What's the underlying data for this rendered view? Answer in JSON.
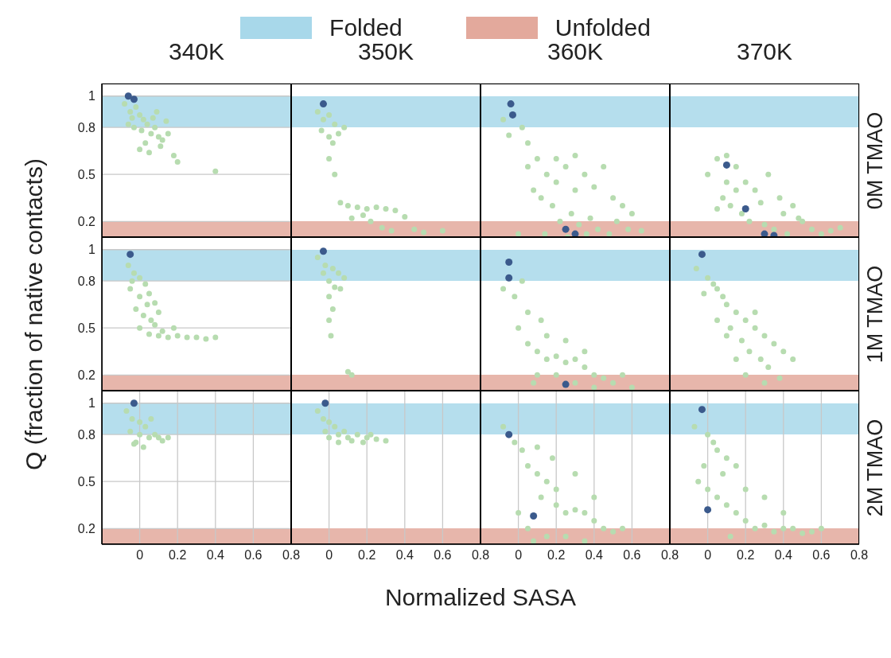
{
  "chart_data": [
    {
      "type": "scatter",
      "title": "340K",
      "legend": "top",
      "marker": "circle",
      "grid": true,
      "tick_labels": "y",
      "xlim": [
        -0.2,
        0.8
      ],
      "ylim": [
        0.1,
        1.08
      ],
      "xticks": [
        0,
        0.2,
        0.4,
        0.6,
        0.8
      ],
      "yticks": [
        0.2,
        0.5,
        0.8,
        1
      ],
      "bands": [
        {
          "axis": "y",
          "from": 0.8,
          "to": 1,
          "label": "Folded",
          "color": "#a8d8ea"
        },
        {
          "axis": "y",
          "from": 0.1,
          "to": 0.2,
          "label": "Unfolded",
          "color": "#e3a99c"
        }
      ],
      "series": [
        {
          "color": "#b7dcb0",
          "x": [
            -0.08,
            -0.05,
            -0.02,
            0,
            0.02,
            -0.06,
            -0.03,
            0.01,
            0.04,
            0.06,
            0.08,
            0.1,
            0.12,
            0.03,
            0.0,
            0.05,
            0.15,
            0.18,
            0.2,
            0.09,
            0.4,
            -0.04,
            0.07,
            0.11,
            0.14
          ],
          "values": [
            0.95,
            0.9,
            0.93,
            0.88,
            0.85,
            0.82,
            0.8,
            0.78,
            0.82,
            0.76,
            0.8,
            0.74,
            0.72,
            0.7,
            0.66,
            0.64,
            0.76,
            0.62,
            0.58,
            0.9,
            0.52,
            0.86,
            0.86,
            0.68,
            0.84
          ]
        },
        {
          "color": "#3b5a8c",
          "x": [
            -0.06,
            -0.03
          ],
          "values": [
            1.0,
            0.98
          ]
        }
      ]
    },
    {
      "type": "scatter",
      "title": "350K",
      "marker": "circle",
      "grid": true,
      "tick_labels": false,
      "xlim": [
        -0.2,
        0.8
      ],
      "ylim": [
        0.1,
        1.08
      ],
      "xticks": [
        0,
        0.2,
        0.4,
        0.6,
        0.8
      ],
      "yticks": [
        0.2,
        0.5,
        0.8,
        1
      ],
      "bands": [
        {
          "axis": "y",
          "from": 0.8,
          "to": 1,
          "color": "#a8d8ea"
        },
        {
          "axis": "y",
          "from": 0.1,
          "to": 0.2,
          "color": "#e3a99c"
        }
      ],
      "series": [
        {
          "color": "#b7dcb0",
          "x": [
            -0.06,
            -0.03,
            0,
            0.03,
            -0.04,
            0,
            0.02,
            0.05,
            0.08,
            0.0,
            0.03,
            0.06,
            0.1,
            0.15,
            0.2,
            0.25,
            0.3,
            0.35,
            0.12,
            0.18,
            0.22,
            0.28,
            0.33,
            0.45,
            0.5,
            0.6,
            0.4
          ],
          "values": [
            0.9,
            0.85,
            0.88,
            0.82,
            0.78,
            0.74,
            0.7,
            0.76,
            0.8,
            0.6,
            0.5,
            0.32,
            0.3,
            0.29,
            0.28,
            0.29,
            0.28,
            0.27,
            0.22,
            0.24,
            0.2,
            0.16,
            0.14,
            0.15,
            0.13,
            0.14,
            0.23
          ]
        },
        {
          "color": "#3b5a8c",
          "x": [
            -0.03
          ],
          "values": [
            0.95
          ]
        }
      ]
    },
    {
      "type": "scatter",
      "title": "360K",
      "marker": "circle",
      "grid": true,
      "tick_labels": false,
      "xlim": [
        -0.2,
        0.8
      ],
      "ylim": [
        0.1,
        1.08
      ],
      "xticks": [
        0,
        0.2,
        0.4,
        0.6,
        0.8
      ],
      "yticks": [
        0.2,
        0.5,
        0.8,
        1
      ],
      "bands": [
        {
          "axis": "y",
          "from": 0.8,
          "to": 1,
          "color": "#a8d8ea"
        },
        {
          "axis": "y",
          "from": 0.1,
          "to": 0.2,
          "color": "#e3a99c"
        }
      ],
      "series": [
        {
          "color": "#b7dcb0",
          "x": [
            -0.08,
            0.02,
            -0.05,
            0.05,
            0.05,
            0.1,
            0.15,
            0.2,
            0.25,
            0.3,
            0.35,
            0.4,
            0.45,
            0.5,
            0.55,
            0.6,
            0.12,
            0.18,
            0.22,
            0.28,
            0.32,
            0.38,
            0.42,
            0.48,
            0.08,
            0.14,
            0.26,
            0.36,
            0.52,
            0.58,
            0.65,
            0.0,
            0.2,
            0.3
          ],
          "values": [
            0.85,
            0.8,
            0.75,
            0.7,
            0.55,
            0.6,
            0.5,
            0.45,
            0.55,
            0.4,
            0.5,
            0.42,
            0.55,
            0.35,
            0.3,
            0.25,
            0.35,
            0.3,
            0.2,
            0.25,
            0.18,
            0.22,
            0.15,
            0.12,
            0.4,
            0.12,
            0.1,
            0.12,
            0.2,
            0.15,
            0.14,
            0.12,
            0.6,
            0.62
          ]
        },
        {
          "color": "#3b5a8c",
          "x": [
            -0.04,
            -0.03,
            0.25,
            0.3
          ],
          "values": [
            0.95,
            0.88,
            0.15,
            0.12
          ]
        }
      ]
    },
    {
      "type": "scatter",
      "title": "370K",
      "y2label": "0M TMAO",
      "marker": "circle",
      "grid": true,
      "tick_labels": false,
      "xlim": [
        -0.2,
        0.8
      ],
      "ylim": [
        0.1,
        1.08
      ],
      "xticks": [
        0,
        0.2,
        0.4,
        0.6,
        0.8
      ],
      "yticks": [
        0.2,
        0.5,
        0.8,
        1
      ],
      "bands": [
        {
          "axis": "y",
          "from": 0.8,
          "to": 1,
          "color": "#a8d8ea"
        },
        {
          "axis": "y",
          "from": 0.1,
          "to": 0.2,
          "color": "#e3a99c"
        }
      ],
      "series": [
        {
          "color": "#b7dcb0",
          "x": [
            0.05,
            0.1,
            0.15,
            0.0,
            0.2,
            0.25,
            0.08,
            0.12,
            0.18,
            0.22,
            0.3,
            0.35,
            0.4,
            0.45,
            0.5,
            0.55,
            0.6,
            0.65,
            0.7,
            0.1,
            0.15,
            0.28,
            0.38,
            0.48,
            0.05,
            0.32,
            0.42
          ],
          "values": [
            0.6,
            0.62,
            0.55,
            0.5,
            0.45,
            0.4,
            0.35,
            0.3,
            0.25,
            0.2,
            0.18,
            0.15,
            0.25,
            0.3,
            0.2,
            0.15,
            0.12,
            0.14,
            0.16,
            0.45,
            0.4,
            0.32,
            0.35,
            0.22,
            0.28,
            0.5,
            0.12
          ]
        },
        {
          "color": "#3b5a8c",
          "x": [
            0.1,
            0.2,
            0.3,
            0.35
          ],
          "values": [
            0.56,
            0.28,
            0.12,
            0.11
          ]
        }
      ]
    },
    {
      "type": "scatter",
      "ylabel": "Q (fraction of native contacts)",
      "marker": "circle",
      "grid": true,
      "tick_labels": "y",
      "xlim": [
        -0.2,
        0.8
      ],
      "ylim": [
        0.1,
        1.08
      ],
      "xticks": [
        0,
        0.2,
        0.4,
        0.6,
        0.8
      ],
      "yticks": [
        0.2,
        0.5,
        0.8,
        1
      ],
      "bands": [
        {
          "axis": "y",
          "from": 0.8,
          "to": 1,
          "color": "#a8d8ea"
        },
        {
          "axis": "y",
          "from": 0.1,
          "to": 0.2,
          "color": "#e3a99c"
        }
      ],
      "series": [
        {
          "color": "#b7dcb0",
          "x": [
            -0.06,
            -0.03,
            0,
            0.03,
            -0.05,
            0,
            0.05,
            0.08,
            -0.02,
            0.02,
            0.06,
            0.1,
            0.0,
            0.05,
            0.1,
            0.15,
            0.2,
            0.25,
            0.3,
            0.35,
            0.4,
            0.12,
            0.18,
            0.04,
            -0.04,
            0.08
          ],
          "values": [
            0.9,
            0.85,
            0.82,
            0.78,
            0.75,
            0.7,
            0.72,
            0.66,
            0.62,
            0.58,
            0.55,
            0.6,
            0.5,
            0.46,
            0.45,
            0.44,
            0.45,
            0.44,
            0.44,
            0.43,
            0.44,
            0.48,
            0.5,
            0.65,
            0.8,
            0.52
          ]
        },
        {
          "color": "#3b5a8c",
          "x": [
            -0.05
          ],
          "values": [
            0.97
          ]
        }
      ]
    },
    {
      "type": "scatter",
      "marker": "circle",
      "grid": true,
      "tick_labels": false,
      "xlim": [
        -0.2,
        0.8
      ],
      "ylim": [
        0.1,
        1.08
      ],
      "xticks": [
        0,
        0.2,
        0.4,
        0.6,
        0.8
      ],
      "yticks": [
        0.2,
        0.5,
        0.8,
        1
      ],
      "bands": [
        {
          "axis": "y",
          "from": 0.8,
          "to": 1,
          "color": "#a8d8ea"
        },
        {
          "axis": "y",
          "from": 0.1,
          "to": 0.2,
          "color": "#e3a99c"
        }
      ],
      "series": [
        {
          "color": "#b7dcb0",
          "x": [
            -0.06,
            -0.02,
            0.02,
            0.05,
            0.0,
            0.03,
            0.08,
            0.0,
            0.02,
            0.0,
            0.01,
            0.1,
            0.12,
            0.06,
            -0.03
          ],
          "values": [
            0.95,
            0.9,
            0.88,
            0.85,
            0.8,
            0.76,
            0.82,
            0.7,
            0.62,
            0.55,
            0.45,
            0.22,
            0.2,
            0.75,
            0.85
          ]
        },
        {
          "color": "#3b5a8c",
          "x": [
            -0.03
          ],
          "values": [
            0.99
          ]
        }
      ]
    },
    {
      "type": "scatter",
      "marker": "circle",
      "grid": true,
      "tick_labels": false,
      "xlim": [
        -0.2,
        0.8
      ],
      "ylim": [
        0.1,
        1.08
      ],
      "xticks": [
        0,
        0.2,
        0.4,
        0.6,
        0.8
      ],
      "yticks": [
        0.2,
        0.5,
        0.8,
        1
      ],
      "bands": [
        {
          "axis": "y",
          "from": 0.8,
          "to": 1,
          "color": "#a8d8ea"
        },
        {
          "axis": "y",
          "from": 0.1,
          "to": 0.2,
          "color": "#e3a99c"
        }
      ],
      "series": [
        {
          "color": "#b7dcb0",
          "x": [
            -0.08,
            -0.02,
            0.02,
            0.05,
            0.0,
            0.05,
            0.1,
            0.15,
            0.2,
            0.25,
            0.3,
            0.35,
            0.4,
            0.45,
            0.5,
            0.1,
            0.2,
            0.3,
            0.4,
            0.15,
            0.25,
            0.35,
            0.55,
            0.08,
            0.6,
            0.12
          ],
          "values": [
            0.75,
            0.7,
            0.8,
            0.6,
            0.5,
            0.4,
            0.35,
            0.3,
            0.32,
            0.28,
            0.3,
            0.25,
            0.2,
            0.18,
            0.15,
            0.2,
            0.2,
            0.15,
            0.12,
            0.45,
            0.42,
            0.35,
            0.2,
            0.15,
            0.12,
            0.55
          ]
        },
        {
          "color": "#3b5a8c",
          "x": [
            -0.05,
            -0.05,
            0.25
          ],
          "values": [
            0.92,
            0.82,
            0.14
          ]
        }
      ]
    },
    {
      "type": "scatter",
      "y2label": "1M TMAO",
      "marker": "circle",
      "grid": true,
      "tick_labels": false,
      "xlim": [
        -0.2,
        0.8
      ],
      "ylim": [
        0.1,
        1.08
      ],
      "xticks": [
        0,
        0.2,
        0.4,
        0.6,
        0.8
      ],
      "yticks": [
        0.2,
        0.5,
        0.8,
        1
      ],
      "bands": [
        {
          "axis": "y",
          "from": 0.8,
          "to": 1,
          "color": "#a8d8ea"
        },
        {
          "axis": "y",
          "from": 0.1,
          "to": 0.2,
          "color": "#e3a99c"
        }
      ],
      "series": [
        {
          "color": "#b7dcb0",
          "x": [
            -0.06,
            0.0,
            0.03,
            0.05,
            0.08,
            0.1,
            0.15,
            0.2,
            0.25,
            0.3,
            0.35,
            0.4,
            0.45,
            0.12,
            0.18,
            0.22,
            0.28,
            0.32,
            0.05,
            0.1,
            0.2,
            0.3,
            0.15,
            0.25,
            -0.02,
            0.38
          ],
          "values": [
            0.88,
            0.82,
            0.78,
            0.75,
            0.7,
            0.65,
            0.6,
            0.55,
            0.5,
            0.45,
            0.4,
            0.35,
            0.3,
            0.5,
            0.42,
            0.35,
            0.3,
            0.25,
            0.55,
            0.45,
            0.2,
            0.15,
            0.3,
            0.6,
            0.72,
            0.18
          ]
        },
        {
          "color": "#3b5a8c",
          "x": [
            -0.03
          ],
          "values": [
            0.97
          ]
        }
      ]
    },
    {
      "type": "scatter",
      "marker": "circle",
      "grid": true,
      "xlim": [
        -0.2,
        0.8
      ],
      "ylim": [
        0.1,
        1.08
      ],
      "xticks": [
        0,
        0.2,
        0.4,
        0.6,
        0.8
      ],
      "yticks": [
        0.2,
        0.5,
        0.8,
        1
      ],
      "bands": [
        {
          "axis": "y",
          "from": 0.8,
          "to": 1,
          "color": "#a8d8ea"
        },
        {
          "axis": "y",
          "from": 0.1,
          "to": 0.2,
          "color": "#e3a99c"
        }
      ],
      "series": [
        {
          "color": "#b7dcb0",
          "x": [
            -0.07,
            -0.04,
            0,
            0.03,
            0.06,
            -0.05,
            0,
            0.05,
            0.1,
            0.12,
            -0.02,
            0.02,
            0.08,
            0.15,
            -0.03
          ],
          "values": [
            0.95,
            0.9,
            0.88,
            0.85,
            0.9,
            0.82,
            0.8,
            0.78,
            0.78,
            0.76,
            0.75,
            0.72,
            0.8,
            0.78,
            0.74
          ]
        },
        {
          "color": "#3b5a8c",
          "x": [
            -0.03
          ],
          "values": [
            1.0
          ]
        }
      ]
    },
    {
      "type": "scatter",
      "marker": "circle",
      "grid": true,
      "tick_labels": "x",
      "xlim": [
        -0.2,
        0.8
      ],
      "ylim": [
        0.1,
        1.08
      ],
      "xticks": [
        0,
        0.2,
        0.4,
        0.6,
        0.8
      ],
      "yticks": [
        0.2,
        0.5,
        0.8,
        1
      ],
      "bands": [
        {
          "axis": "y",
          "from": 0.8,
          "to": 1,
          "color": "#a8d8ea"
        },
        {
          "axis": "y",
          "from": 0.1,
          "to": 0.2,
          "color": "#e3a99c"
        }
      ],
      "series": [
        {
          "color": "#b7dcb0",
          "x": [
            -0.06,
            -0.03,
            0,
            0.03,
            0.05,
            0.08,
            0.1,
            0.15,
            0.2,
            0.25,
            0.3,
            0.0,
            0.05,
            0.12,
            0.18,
            0.22,
            -0.02
          ],
          "values": [
            0.95,
            0.9,
            0.88,
            0.85,
            0.8,
            0.82,
            0.78,
            0.8,
            0.78,
            0.77,
            0.76,
            0.78,
            0.75,
            0.76,
            0.75,
            0.8,
            0.82
          ]
        },
        {
          "color": "#3b5a8c",
          "x": [
            -0.02
          ],
          "values": [
            1.0
          ]
        }
      ]
    },
    {
      "type": "scatter",
      "xlabel": "Normalized SASA",
      "marker": "circle",
      "grid": true,
      "tick_labels": "x",
      "xlim": [
        -0.2,
        0.8
      ],
      "ylim": [
        0.1,
        1.08
      ],
      "xticks": [
        0,
        0.2,
        0.4,
        0.6,
        0.8
      ],
      "yticks": [
        0.2,
        0.5,
        0.8,
        1
      ],
      "bands": [
        {
          "axis": "y",
          "from": 0.8,
          "to": 1,
          "color": "#a8d8ea"
        },
        {
          "axis": "y",
          "from": 0.1,
          "to": 0.2,
          "color": "#e3a99c"
        }
      ],
      "series": [
        {
          "color": "#b7dcb0",
          "x": [
            -0.08,
            -0.02,
            0.02,
            0.05,
            0.1,
            0.15,
            0.2,
            0.12,
            0.2,
            0.25,
            0.3,
            0.35,
            0.4,
            0.45,
            0.5,
            0.55,
            0.0,
            0.05,
            0.15,
            0.25,
            0.35,
            0.08,
            0.18,
            0.3,
            0.1,
            0.4
          ],
          "values": [
            0.85,
            0.75,
            0.7,
            0.6,
            0.55,
            0.5,
            0.45,
            0.4,
            0.35,
            0.3,
            0.32,
            0.3,
            0.25,
            0.2,
            0.18,
            0.2,
            0.3,
            0.2,
            0.15,
            0.15,
            0.12,
            0.12,
            0.65,
            0.55,
            0.72,
            0.4
          ]
        },
        {
          "color": "#3b5a8c",
          "x": [
            -0.05,
            0.08
          ],
          "values": [
            0.8,
            0.28
          ]
        }
      ]
    },
    {
      "type": "scatter",
      "y2label": "2M TMAO",
      "marker": "circle",
      "grid": true,
      "tick_labels": "x",
      "xlim": [
        -0.2,
        0.8
      ],
      "ylim": [
        0.1,
        1.08
      ],
      "xticks": [
        0,
        0.2,
        0.4,
        0.6,
        0.8
      ],
      "yticks": [
        0.2,
        0.5,
        0.8,
        1
      ],
      "bands": [
        {
          "axis": "y",
          "from": 0.8,
          "to": 1,
          "color": "#a8d8ea"
        },
        {
          "axis": "y",
          "from": 0.1,
          "to": 0.2,
          "color": "#e3a99c"
        }
      ],
      "series": [
        {
          "color": "#b7dcb0",
          "x": [
            -0.07,
            0.0,
            0.03,
            0.05,
            0.1,
            0.15,
            -0.05,
            0.0,
            0.05,
            0.1,
            0.15,
            0.2,
            0.25,
            0.3,
            0.35,
            0.4,
            0.45,
            0.5,
            0.55,
            0.6,
            0.08,
            0.2,
            0.3,
            0.12,
            0.4,
            -0.02
          ],
          "values": [
            0.85,
            0.8,
            0.75,
            0.7,
            0.65,
            0.6,
            0.5,
            0.45,
            0.4,
            0.35,
            0.3,
            0.25,
            0.2,
            0.22,
            0.18,
            0.2,
            0.2,
            0.17,
            0.18,
            0.2,
            0.55,
            0.45,
            0.4,
            0.15,
            0.3,
            0.6
          ]
        },
        {
          "color": "#3b5a8c",
          "x": [
            -0.03,
            0.0
          ],
          "values": [
            0.96,
            0.32
          ]
        }
      ]
    }
  ]
}
